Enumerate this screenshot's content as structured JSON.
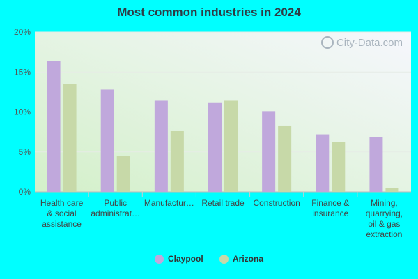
{
  "chart_data": {
    "type": "bar",
    "title": "Most common industries in 2024",
    "categories": [
      [
        "Health care",
        "& social",
        "assistance"
      ],
      [
        "Public",
        "administrat…"
      ],
      [
        "Manufactur…"
      ],
      [
        "Retail trade"
      ],
      [
        "Construction"
      ],
      [
        "Finance &",
        "insurance"
      ],
      [
        "Mining,",
        "quarrying,",
        "oil & gas",
        "extraction"
      ]
    ],
    "series": [
      {
        "name": "Claypool",
        "color": "#c0a8dc",
        "values": [
          16.4,
          12.8,
          11.4,
          11.2,
          10.1,
          7.2,
          6.9
        ]
      },
      {
        "name": "Arizona",
        "color": "#c7d9a8",
        "values": [
          13.5,
          4.5,
          7.6,
          11.4,
          8.3,
          6.2,
          0.5
        ]
      }
    ],
    "ylim": [
      0,
      20
    ],
    "yticks": [
      "0%",
      "5%",
      "10%",
      "15%",
      "20%"
    ],
    "ytick_values": [
      0,
      5,
      10,
      15,
      20
    ],
    "grid": true,
    "legend_position": "bottom"
  },
  "watermark": "City-Data.com"
}
